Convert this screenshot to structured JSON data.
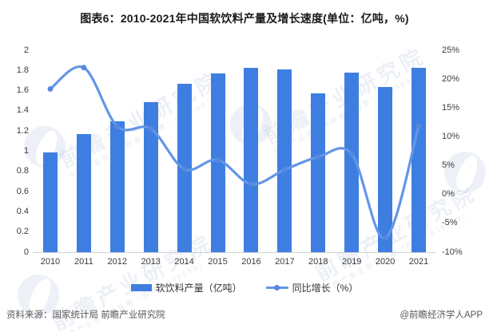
{
  "title": "图表6：2010-2021年中国软饮料产量及增长速度(单位：亿吨，%)",
  "chart_data": {
    "type": "bar",
    "subtype": "bar+line combo, dual y-axes",
    "categories": [
      "2010",
      "2011",
      "2012",
      "2013",
      "2014",
      "2015",
      "2016",
      "2017",
      "2018",
      "2019",
      "2020",
      "2021"
    ],
    "series": [
      {
        "name": "软饮料产量（亿吨）",
        "type": "bar",
        "axis": "left",
        "values": [
          0.99,
          1.17,
          1.3,
          1.49,
          1.67,
          1.77,
          1.83,
          1.81,
          1.57,
          1.78,
          1.64,
          1.83
        ]
      },
      {
        "name": "同比增长（%）",
        "type": "line",
        "axis": "right",
        "values": [
          18.3,
          22.0,
          11.8,
          11.4,
          4.4,
          6.0,
          1.8,
          4.3,
          6.5,
          7.0,
          -7.6,
          11.9
        ]
      }
    ],
    "left_axis": {
      "min": 0,
      "max": 2,
      "labels": [
        "2",
        "1.8",
        "1.6",
        "1.4",
        "1.2",
        "1",
        "0.8",
        "0.6",
        "0.4",
        "0.2",
        "0"
      ]
    },
    "right_axis": {
      "min": -10,
      "max": 25,
      "labels": [
        "25%",
        "20%",
        "15%",
        "10%",
        "5%",
        "0%",
        "-5%",
        "-10%"
      ]
    },
    "grid": false,
    "legend_position": "bottom"
  },
  "legend": {
    "bar_label": "软饮料产量（亿吨）",
    "line_label": "同比增长（%）"
  },
  "footer": {
    "source": "资料来源：国家统计局 前瞻产业研究院",
    "credit": "@前瞻经济学人APP"
  },
  "watermark": {
    "main": "前瞻产业研究院",
    "sub": "中国产业咨询领导者（股票：839599）"
  },
  "colors": {
    "bar": "#3E7EE0",
    "line": "#6496E8",
    "dot": "#5588DE",
    "axis_line": "#CFD2D6",
    "tick": "#3C3C3C",
    "footer": "#595959"
  }
}
